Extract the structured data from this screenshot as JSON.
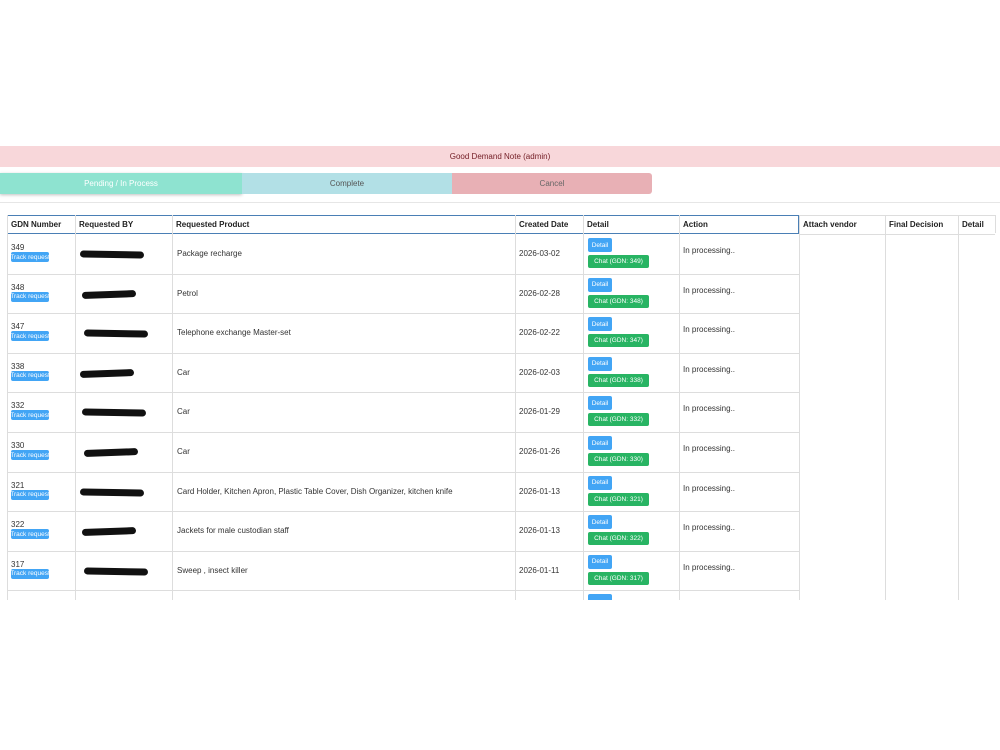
{
  "header": {
    "title": "Good Demand Note (admin)"
  },
  "tabs": [
    "Pending / In Process",
    "Complete",
    "Cancel"
  ],
  "table": {
    "columns": [
      "GDN Number",
      "Requested BY",
      "Requested Product",
      "Created Date",
      "Detail",
      "Action",
      "Attach vendor",
      "Final Decision",
      "Detail"
    ],
    "rows": [
      {
        "gdn": "349",
        "product": "Package recharge",
        "date": "2026-03-02",
        "track": "Track request",
        "detail": "Detail",
        "chat": "Chat (GDN: 349)",
        "action": "In processing.."
      },
      {
        "gdn": "348",
        "product": "Petrol",
        "date": "2026-02-28",
        "track": "Track request",
        "detail": "Detail",
        "chat": "Chat (GDN: 348)",
        "action": "In processing.."
      },
      {
        "gdn": "347",
        "product": "Telephone exchange Master-set",
        "date": "2026-02-22",
        "track": "Track request",
        "detail": "Detail",
        "chat": "Chat (GDN: 347)",
        "action": "In processing.."
      },
      {
        "gdn": "338",
        "product": "Car",
        "date": "2026-02-03",
        "track": "Track request",
        "detail": "Detail",
        "chat": "Chat (GDN: 338)",
        "action": "In processing.."
      },
      {
        "gdn": "332",
        "product": "Car",
        "date": "2026-01-29",
        "track": "Track request",
        "detail": "Detail",
        "chat": "Chat (GDN: 332)",
        "action": "In processing.."
      },
      {
        "gdn": "330",
        "product": "Car",
        "date": "2026-01-26",
        "track": "Track request",
        "detail": "Detail",
        "chat": "Chat (GDN: 330)",
        "action": "In processing.."
      },
      {
        "gdn": "321",
        "product": "Card Holder, Kitchen Apron, Plastic Table Cover, Dish Organizer, kitchen knife",
        "date": "2026-01-13",
        "track": "Track request",
        "detail": "Detail",
        "chat": "Chat (GDN: 321)",
        "action": "In processing.."
      },
      {
        "gdn": "322",
        "product": "Jackets for male custodian staff",
        "date": "2026-01-13",
        "track": "Track request",
        "detail": "Detail",
        "chat": "Chat (GDN: 322)",
        "action": "In processing.."
      },
      {
        "gdn": "317",
        "product": "Sweep , insect killer",
        "date": "2026-01-11",
        "track": "Track request",
        "detail": "Detail",
        "chat": "Chat (GDN: 317)",
        "action": "In processing.."
      }
    ]
  }
}
